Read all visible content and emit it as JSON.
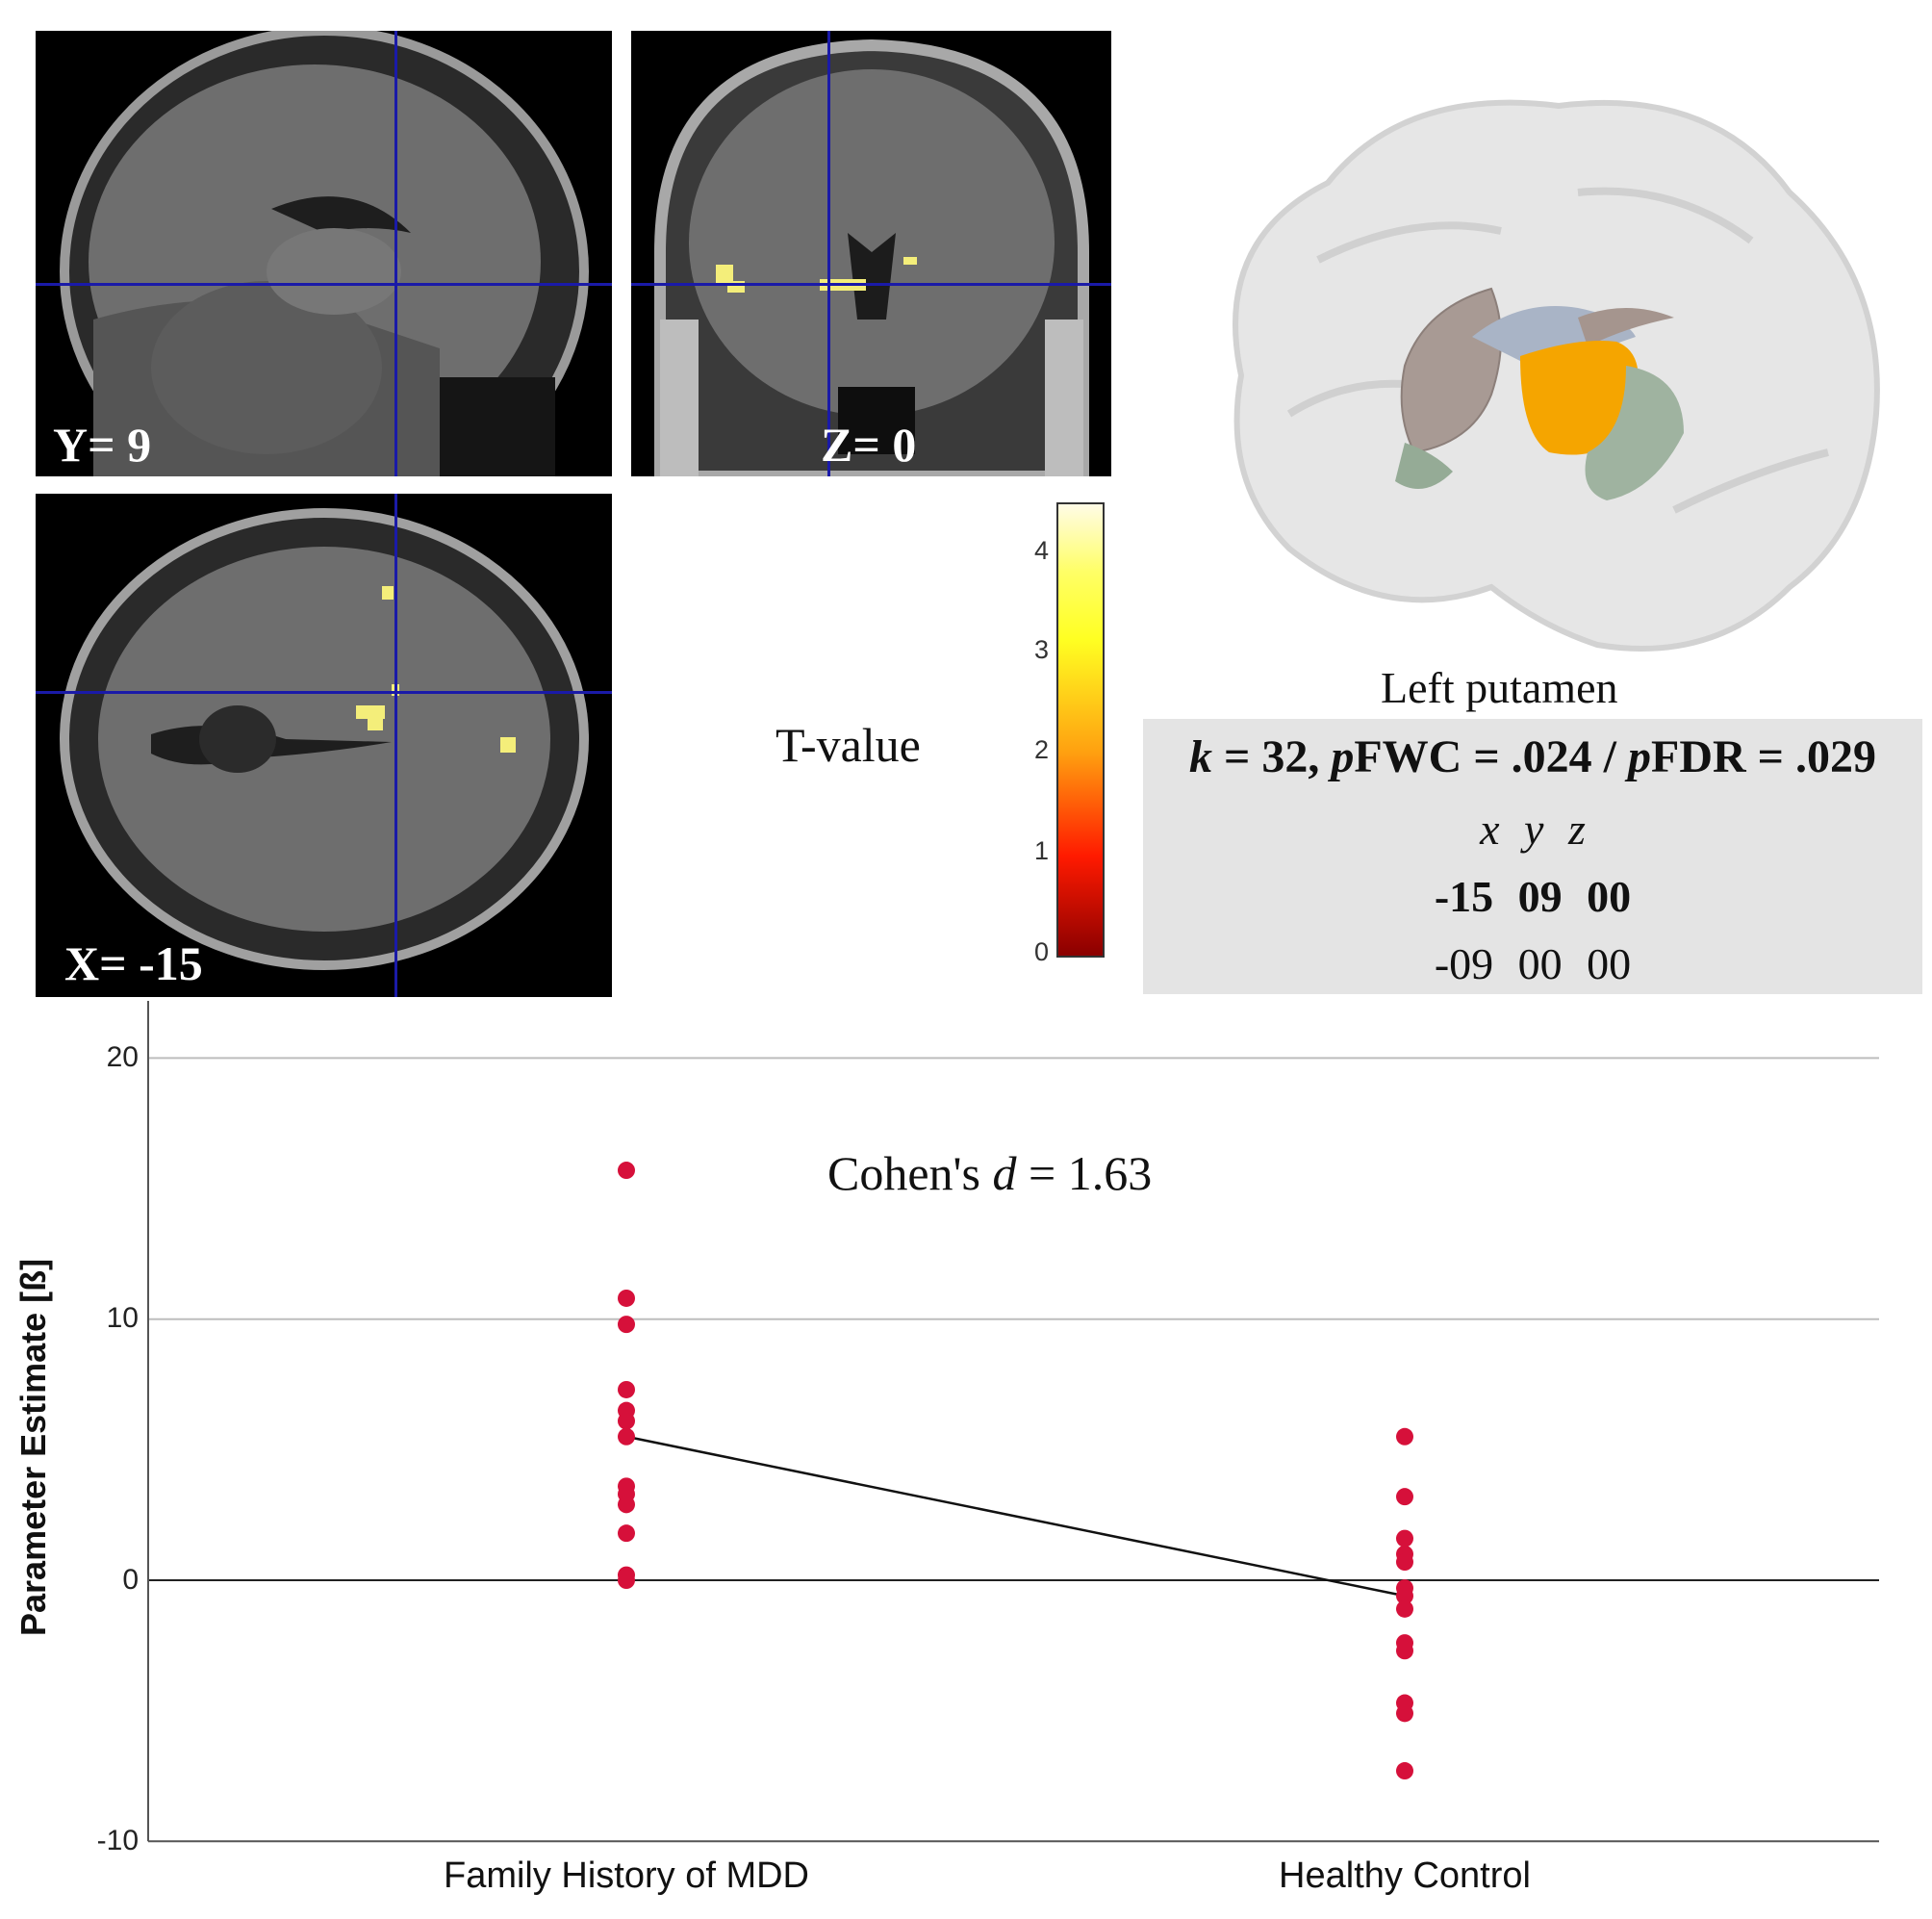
{
  "mri_panels": [
    {
      "id": "sagittal",
      "label": "Y= 9"
    },
    {
      "id": "coronal",
      "label": "Z= 0"
    },
    {
      "id": "axial",
      "label": "X= -15"
    }
  ],
  "colorbar": {
    "label": "T-value",
    "ticks": [
      "4",
      "3",
      "2",
      "1",
      "0"
    ],
    "colors": [
      "#fffbe6",
      "#ffff22",
      "#ffa010",
      "#ff1a00",
      "#8a0000"
    ]
  },
  "render3d": {
    "region_label": "Left putamen",
    "highlight_color": "#f5a500"
  },
  "stats": {
    "line1_k": "k",
    "line1_k_val": " = 32, ",
    "line1_p1": "p",
    "line1_fwc": "FWC = .024 / ",
    "line1_p2": "p",
    "line1_fdr": "FDR = .029",
    "coord_headers": [
      "x",
      "y",
      "z"
    ],
    "peak_row": [
      "-15",
      "09",
      "00"
    ],
    "second_row": [
      "-09",
      "00",
      "00"
    ]
  },
  "chart_data": {
    "type": "scatter",
    "title": "",
    "annotation": "Cohen's d = 1.63",
    "annotation_prefix": "Cohen's ",
    "annotation_var": "d",
    "annotation_suffix": " = 1.63",
    "xlabel": "",
    "ylabel": "Parameter Estimate [ß]",
    "categories": [
      "Family History of MDD",
      "Healthy Control"
    ],
    "ylim": [
      -10,
      22
    ],
    "yticks": [
      "20",
      "10",
      "0",
      "-10"
    ],
    "grid": true,
    "point_color": "#d6103a",
    "series": [
      {
        "name": "Family History of MDD",
        "values": [
          15.7,
          10.8,
          9.8,
          7.3,
          6.5,
          6.1,
          5.5,
          3.6,
          3.3,
          2.9,
          1.8,
          0.2,
          0.0
        ]
      },
      {
        "name": "Healthy Control",
        "values": [
          5.5,
          3.2,
          1.6,
          1.0,
          0.7,
          -0.3,
          -0.6,
          -1.1,
          -2.4,
          -2.7,
          -4.7,
          -5.1,
          -7.3
        ]
      }
    ],
    "mean_line": {
      "Family History of MDD": 5.5,
      "Healthy Control": -0.6
    }
  }
}
